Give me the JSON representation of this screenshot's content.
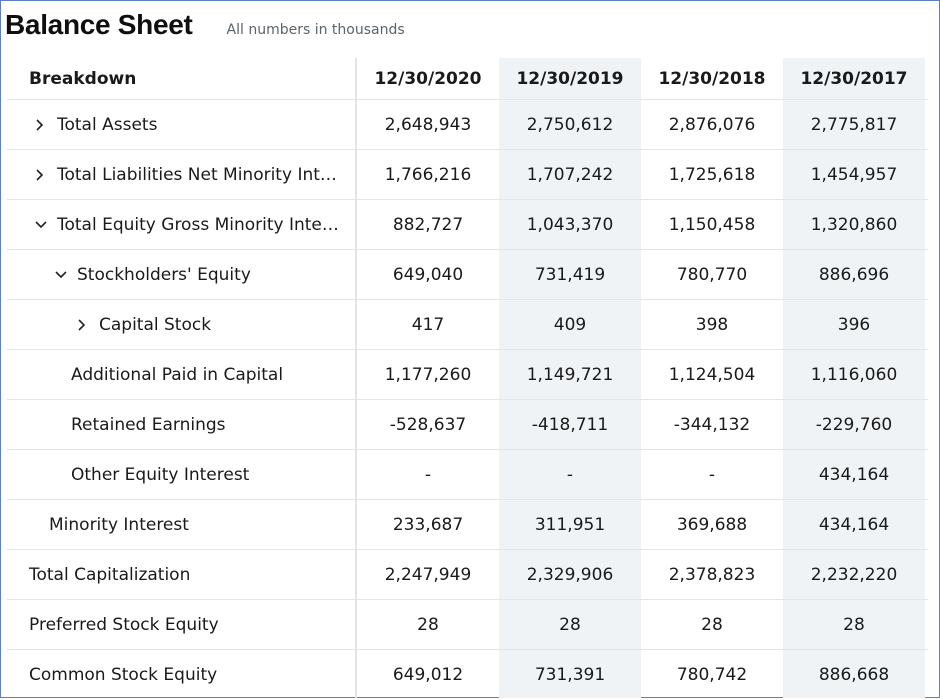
{
  "header": {
    "title": "Balance Sheet",
    "subtitle": "All numbers in thousands"
  },
  "table": {
    "columns": [
      "Breakdown",
      "12/30/2020",
      "12/30/2019",
      "12/30/2018",
      "12/30/2017"
    ],
    "rows": [
      {
        "label": "Total Assets",
        "expander": "chevron-right-icon",
        "values": [
          "2,648,943",
          "2,750,612",
          "2,876,076",
          "2,775,817"
        ]
      },
      {
        "label": "Total Liabilities Net Minority Int…",
        "expander": "chevron-right-icon",
        "values": [
          "1,766,216",
          "1,707,242",
          "1,725,618",
          "1,454,957"
        ]
      },
      {
        "label": "Total Equity Gross Minority Inte…",
        "expander": "chevron-down-icon",
        "values": [
          "882,727",
          "1,043,370",
          "1,150,458",
          "1,320,860"
        ]
      },
      {
        "label": "Stockholders' Equity",
        "expander": "chevron-down-icon",
        "values": [
          "649,040",
          "731,419",
          "780,770",
          "886,696"
        ]
      },
      {
        "label": "Capital Stock",
        "expander": "chevron-right-icon",
        "values": [
          "417",
          "409",
          "398",
          "396"
        ]
      },
      {
        "label": "Additional Paid in Capital",
        "values": [
          "1,177,260",
          "1,149,721",
          "1,124,504",
          "1,116,060"
        ]
      },
      {
        "label": "Retained Earnings",
        "values": [
          "-528,637",
          "-418,711",
          "-344,132",
          "-229,760"
        ]
      },
      {
        "label": "Other Equity Interest",
        "values": [
          "-",
          "-",
          "-",
          "434,164"
        ]
      },
      {
        "label": "Minority Interest",
        "values": [
          "233,687",
          "311,951",
          "369,688",
          "434,164"
        ]
      },
      {
        "label": "Total Capitalization",
        "values": [
          "2,247,949",
          "2,329,906",
          "2,378,823",
          "2,232,220"
        ]
      },
      {
        "label": "Preferred Stock Equity",
        "values": [
          "28",
          "28",
          "28",
          "28"
        ]
      },
      {
        "label": "Common Stock Equity",
        "values": [
          "649,012",
          "731,391",
          "780,742",
          "886,668"
        ]
      }
    ]
  },
  "colors": {
    "border": "#5b7fc2",
    "shaded_column": "#f0f3f5",
    "row_divider": "#e3e6e9"
  }
}
